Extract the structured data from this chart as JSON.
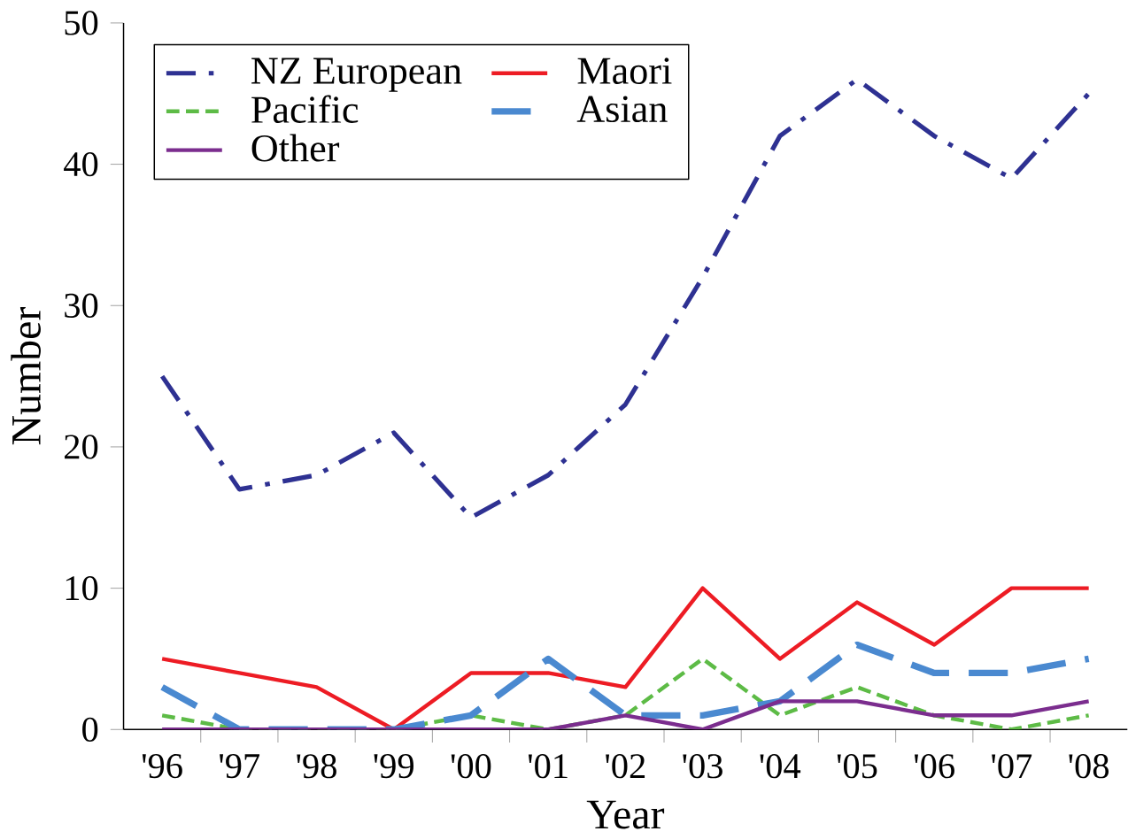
{
  "chart_data": {
    "type": "line",
    "xlabel": "Year",
    "ylabel": "Number",
    "categories": [
      "'96",
      "'97",
      "'98",
      "'99",
      "'00",
      "'01",
      "'02",
      "'03",
      "'04",
      "'05",
      "'06",
      "'07",
      "'08"
    ],
    "series": [
      {
        "name": "NZ European",
        "color": "#2e3192",
        "line_style": "dashdot",
        "values": [
          25,
          17,
          18,
          21,
          15,
          18,
          23,
          32,
          42,
          46,
          42,
          39,
          45
        ]
      },
      {
        "name": "Maori",
        "color": "#ed1c24",
        "line_style": "solid",
        "values": [
          5,
          4,
          3,
          0,
          4,
          4,
          3,
          10,
          5,
          9,
          6,
          10,
          10
        ]
      },
      {
        "name": "Pacific",
        "color": "#5dbb46",
        "line_style": "dotted",
        "values": [
          1,
          0,
          0,
          0,
          1,
          0,
          1,
          5,
          1,
          3,
          1,
          0,
          1
        ]
      },
      {
        "name": "Asian",
        "color": "#4a89d0",
        "line_style": "dashed",
        "values": [
          3,
          0,
          0,
          0,
          1,
          5,
          1,
          1,
          2,
          6,
          4,
          4,
          5
        ]
      },
      {
        "name": "Other",
        "color": "#7b2d8e",
        "line_style": "solid",
        "values": [
          0,
          0,
          0,
          0,
          0,
          0,
          1,
          0,
          2,
          2,
          1,
          1,
          2
        ]
      }
    ],
    "ylim": [
      0,
      50
    ],
    "yticks": [
      0,
      10,
      20,
      30,
      40,
      50
    ],
    "legend": "top left",
    "grid": false,
    "marker": "none"
  }
}
